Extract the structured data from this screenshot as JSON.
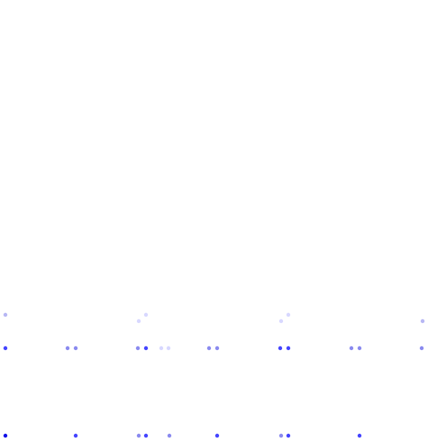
{
  "background_color": "#ffffff",
  "dot_palette": {
    "faint": "#d8d8ff",
    "light": "#b7b7f4",
    "medium": "#8a8aef",
    "strong": "#4444ff",
    "dark": "#1010e8"
  },
  "dot_rows": [
    {
      "row": "upper",
      "dots": [
        {
          "tone": "light"
        },
        {
          "tone": "faint"
        },
        {
          "tone": "faint"
        },
        {
          "tone": "faint"
        },
        {
          "tone": "faint"
        },
        {
          "tone": "light"
        }
      ]
    },
    {
      "row": "middle",
      "dots": [
        {
          "tone": "strong"
        },
        {
          "tone": "medium"
        },
        {
          "tone": "medium"
        },
        {
          "tone": "medium"
        },
        {
          "tone": "strong"
        },
        {
          "tone": "faint"
        },
        {
          "tone": "faint"
        },
        {
          "tone": "medium"
        },
        {
          "tone": "medium"
        },
        {
          "tone": "strong"
        },
        {
          "tone": "strong"
        },
        {
          "tone": "medium"
        },
        {
          "tone": "medium"
        },
        {
          "tone": "medium"
        }
      ]
    },
    {
      "row": "lower",
      "dots": [
        {
          "tone": "dark"
        },
        {
          "tone": "strong"
        },
        {
          "tone": "medium"
        },
        {
          "tone": "strong"
        },
        {
          "tone": "medium"
        },
        {
          "tone": "strong"
        },
        {
          "tone": "medium"
        },
        {
          "tone": "strong"
        },
        {
          "tone": "strong"
        }
      ]
    }
  ]
}
